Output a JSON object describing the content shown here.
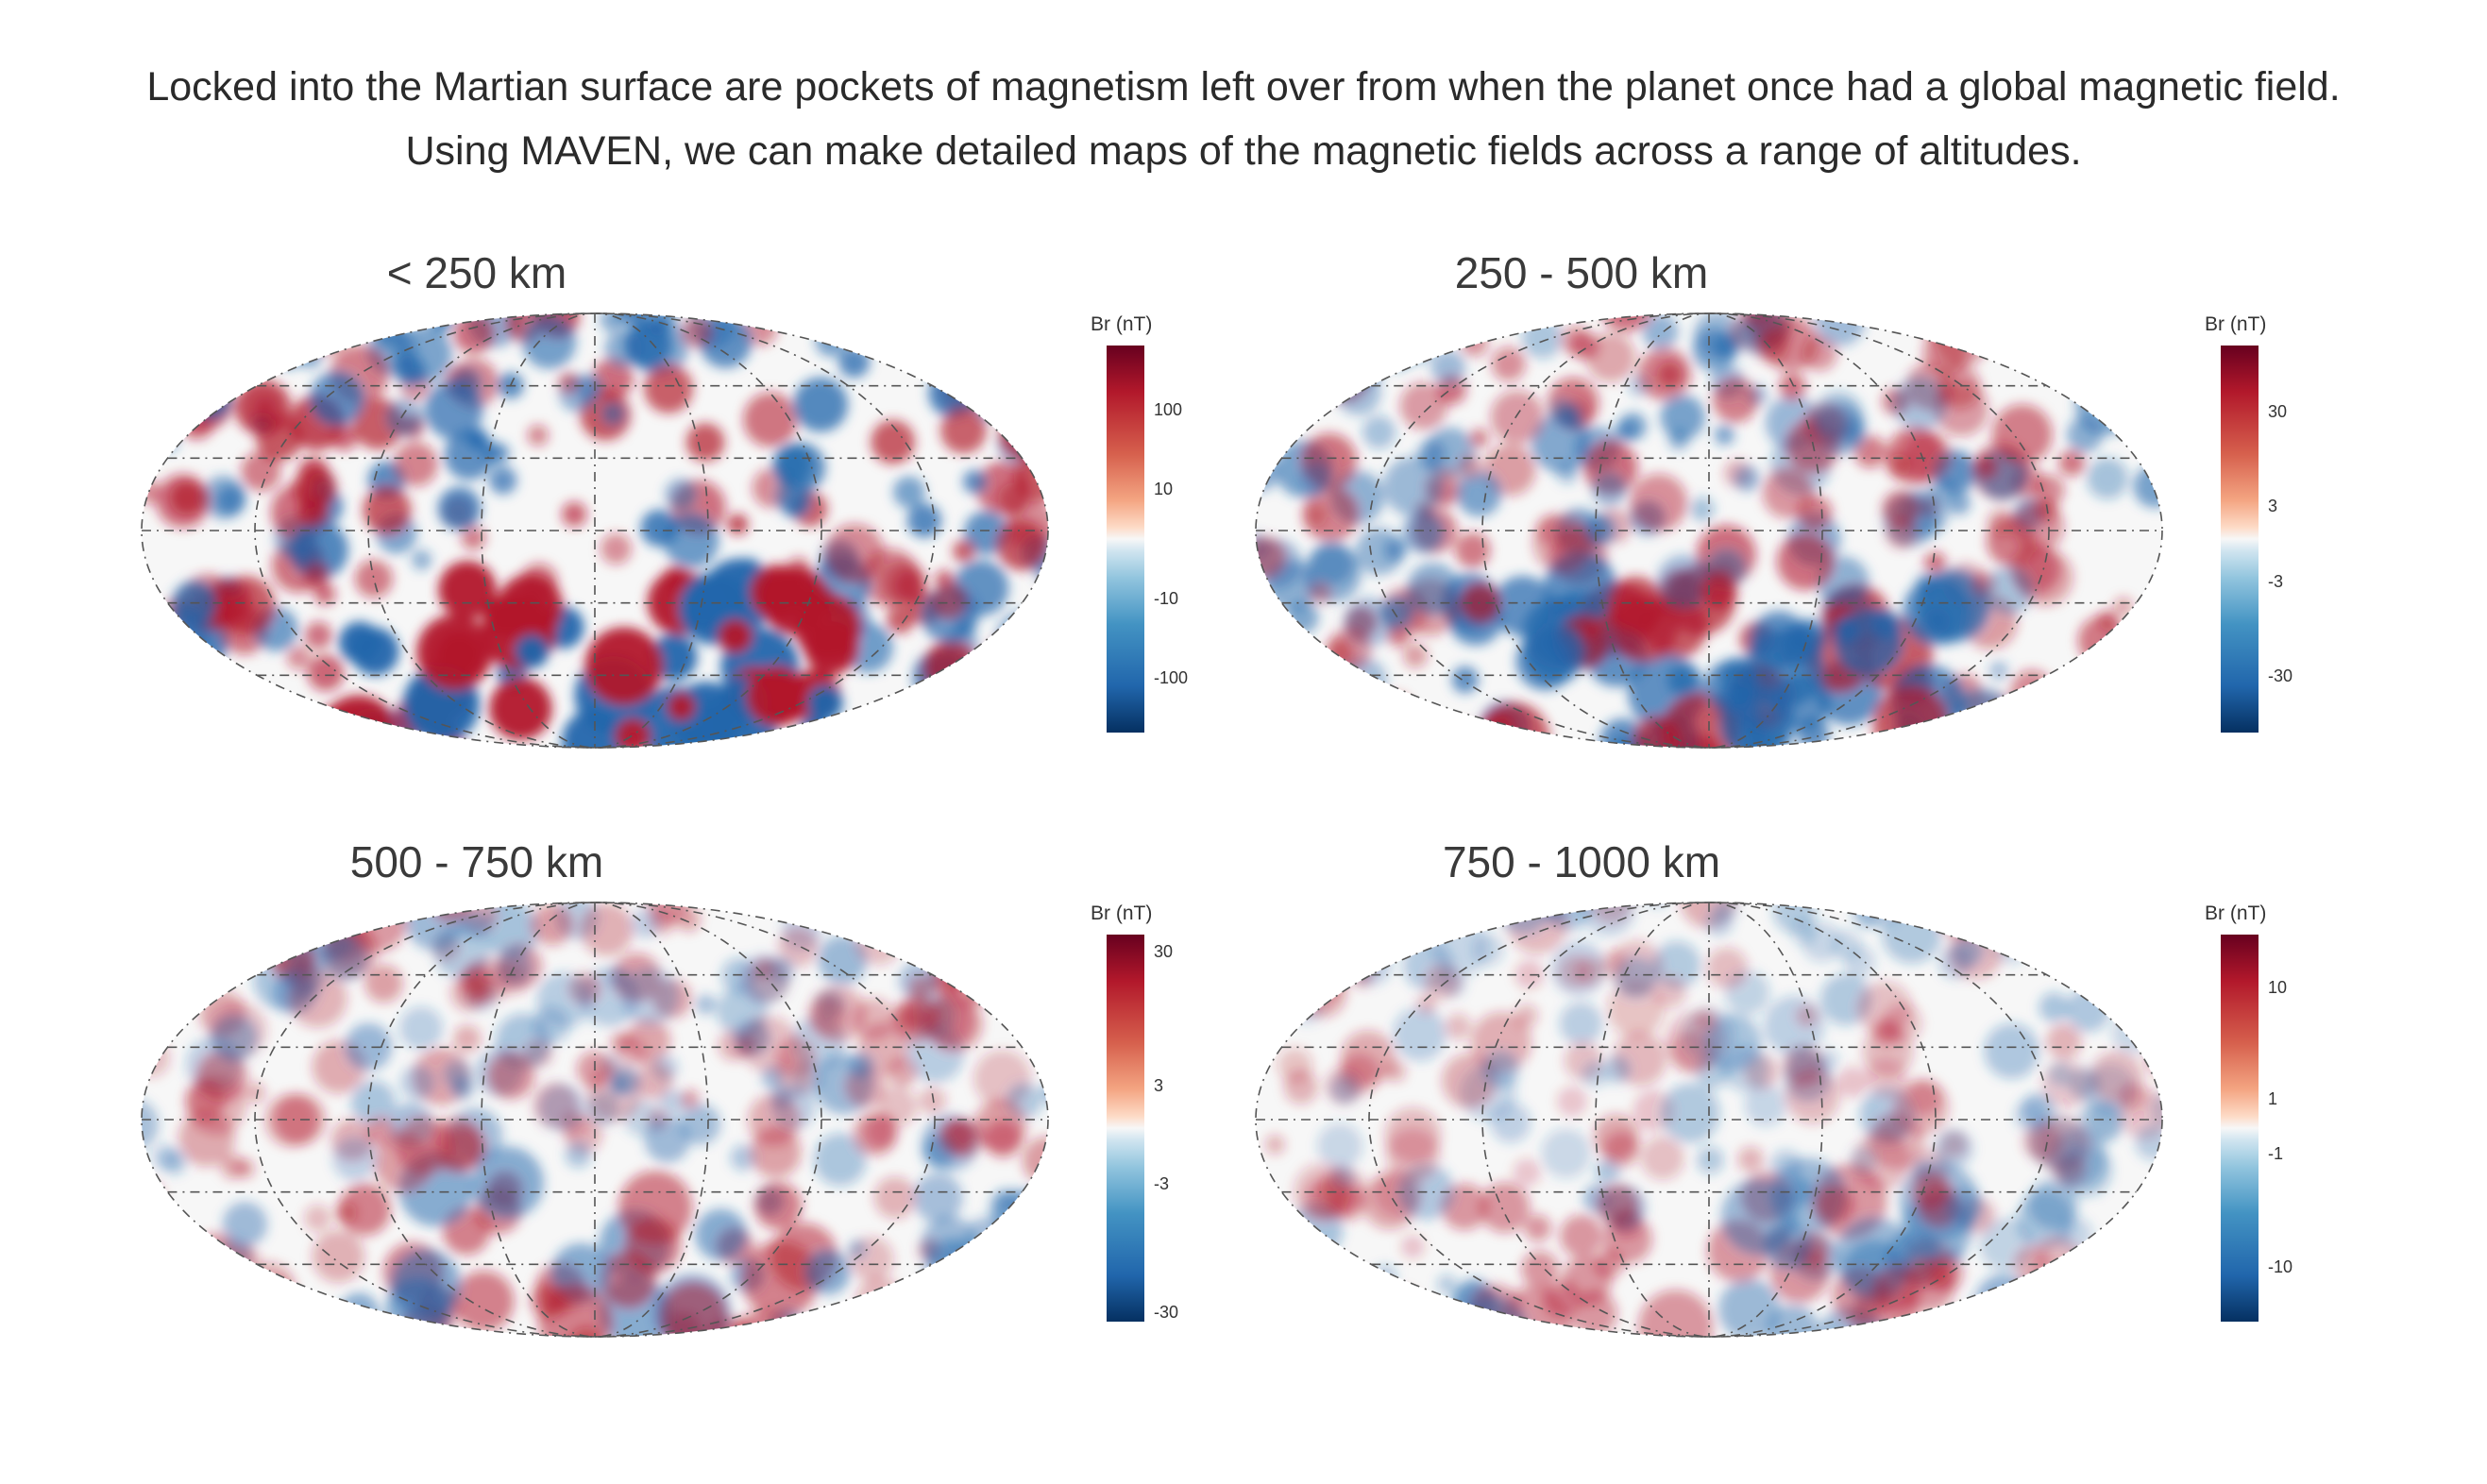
{
  "caption": {
    "line1": "Locked into the Martian surface are pockets of magnetism left over from when the planet once had a global magnetic field.",
    "line2": "Using MAVEN, we can make detailed maps of the magnetic fields across a range of altitudes."
  },
  "colormap": {
    "positive": "#b2182b",
    "neutral": "#f7f7f7",
    "negative": "#2166ac"
  },
  "panels": [
    {
      "title": "< 250 km",
      "colorbar_label": "Br (nT)",
      "ticks": [
        "100",
        "10",
        "-10",
        "-100"
      ],
      "intensity": 1.0
    },
    {
      "title": "250 - 500 km",
      "colorbar_label": "Br (nT)",
      "ticks": [
        "30",
        "3",
        "-3",
        "-30"
      ],
      "intensity": 0.75
    },
    {
      "title": "500 - 750 km",
      "colorbar_label": "Br (nT)",
      "ticks": [
        "30",
        "3",
        "-3",
        "-30"
      ],
      "intensity": 0.55
    },
    {
      "title": "750 - 1000 km",
      "colorbar_label": "Br (nT)",
      "ticks": [
        "10",
        "1",
        "-1",
        "-10"
      ],
      "intensity": 0.45
    }
  ]
}
